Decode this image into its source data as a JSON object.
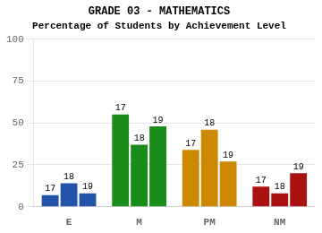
{
  "chart_data": {
    "type": "bar",
    "title": "GRADE 03 - MATHEMATICS",
    "subtitle": "Percentage of Students by Achievement Level",
    "categories": [
      "E",
      "M",
      "PM",
      "NM"
    ],
    "series": [
      {
        "name": "17",
        "colors": [
          "#2255aa",
          "#1a8c1a",
          "#cc8800",
          "#aa1111"
        ],
        "values": [
          7,
          55,
          34,
          12
        ]
      },
      {
        "name": "18",
        "colors": [
          "#2255aa",
          "#1a8c1a",
          "#cc8800",
          "#aa1111"
        ],
        "values": [
          14,
          37,
          46,
          8
        ]
      },
      {
        "name": "19",
        "colors": [
          "#2255aa",
          "#1a8c1a",
          "#cc8800",
          "#aa1111"
        ],
        "values": [
          8,
          48,
          27,
          20
        ]
      }
    ],
    "ylim": [
      0,
      100
    ],
    "yticks": [
      0,
      25,
      50,
      75,
      100
    ],
    "grid": true
  }
}
